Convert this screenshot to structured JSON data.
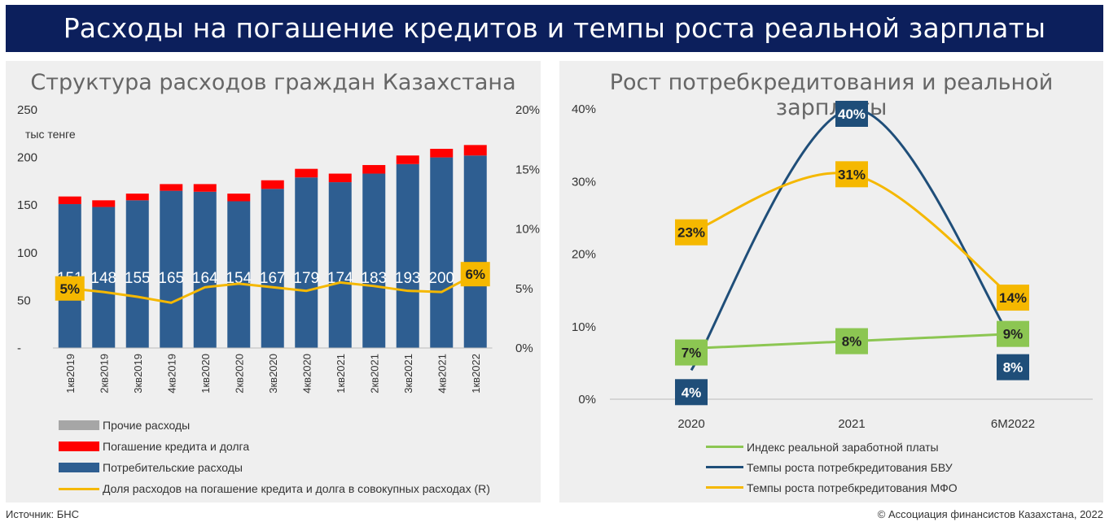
{
  "header": {
    "title": "Расходы на погашение кредитов и темпы роста реальной зарплаты"
  },
  "footer": {
    "source": "Источник: БНС",
    "copyright": "© Ассоциация финансистов Казахстана, 2022"
  },
  "colors": {
    "header_bg": "#0c1f5c",
    "blue": "#2e5e91",
    "red": "#ff0000",
    "gray": "#a6a6a6",
    "yellow": "#f5b800",
    "green": "#8cc652",
    "navy": "#1f4e79"
  },
  "chart_data": [
    {
      "type": "bar",
      "title": "Структура расходов граждан Казахстана",
      "ylabel": "тыс тенге",
      "ylim": [
        0,
        250
      ],
      "y_ticks": [
        "250",
        "200",
        "150",
        "100",
        "50",
        "-"
      ],
      "y2lim": [
        0,
        20
      ],
      "y2_ticks": [
        "20%",
        "15%",
        "10%",
        "5%",
        "0%"
      ],
      "categories": [
        "1кв2019",
        "2кв2019",
        "3кв2019",
        "4кв2019",
        "1кв2020",
        "2кв2020",
        "3кв2020",
        "4кв2020",
        "1кв2021",
        "2кв2021",
        "3кв2021",
        "4кв2021",
        "1кв2022"
      ],
      "series": [
        {
          "name": "Прочие расходы",
          "values": [
            0,
            0,
            0,
            0,
            0,
            0,
            0,
            0,
            0,
            0,
            0,
            0,
            0
          ]
        },
        {
          "name": "Погашение кредита и долга",
          "values": [
            8,
            7,
            7,
            7,
            8,
            8,
            9,
            9,
            9,
            9,
            9,
            9,
            11
          ]
        },
        {
          "name": "Потребительские расходы",
          "values": [
            151,
            148,
            155,
            165,
            164,
            154,
            167,
            179,
            174,
            183,
            193,
            200,
            202
          ],
          "labels": [
            "151",
            "148",
            "155",
            "165",
            "164",
            "154",
            "167",
            "179",
            "174",
            "183",
            "193",
            "200",
            "202"
          ]
        },
        {
          "name": "Доля расходов на погашение кредита и долга в совокупных расходах (R)",
          "axis": "right",
          "values": [
            5.0,
            4.7,
            4.3,
            3.8,
            5.1,
            5.4,
            5.1,
            4.8,
            5.5,
            5.2,
            4.8,
            4.7,
            6.2
          ]
        }
      ],
      "annotations": [
        {
          "category": "1кв2019",
          "text": "5%"
        },
        {
          "category": "1кв2022",
          "text": "6%"
        }
      ],
      "legend_position": "bottom"
    },
    {
      "type": "line",
      "title": "Рост потребкредитования и реальной зарплаты",
      "categories": [
        "2020",
        "2021",
        "6М2022"
      ],
      "ylim": [
        0,
        40
      ],
      "y_ticks": [
        "40%",
        "30%",
        "20%",
        "10%",
        "0%"
      ],
      "series": [
        {
          "name": "Индекс реальной заработной платы",
          "values": [
            7,
            8,
            9
          ],
          "labels": [
            "7%",
            "8%",
            "9%"
          ]
        },
        {
          "name": "Темпы роста потребкредитования БВУ",
          "values": [
            4,
            40,
            8
          ],
          "labels": [
            "4%",
            "40%",
            "8%"
          ]
        },
        {
          "name": "Темпы роста потребкредитования МФО",
          "values": [
            23,
            31,
            14
          ],
          "labels": [
            "23%",
            "31%",
            "14%"
          ]
        }
      ],
      "legend_position": "bottom"
    }
  ]
}
